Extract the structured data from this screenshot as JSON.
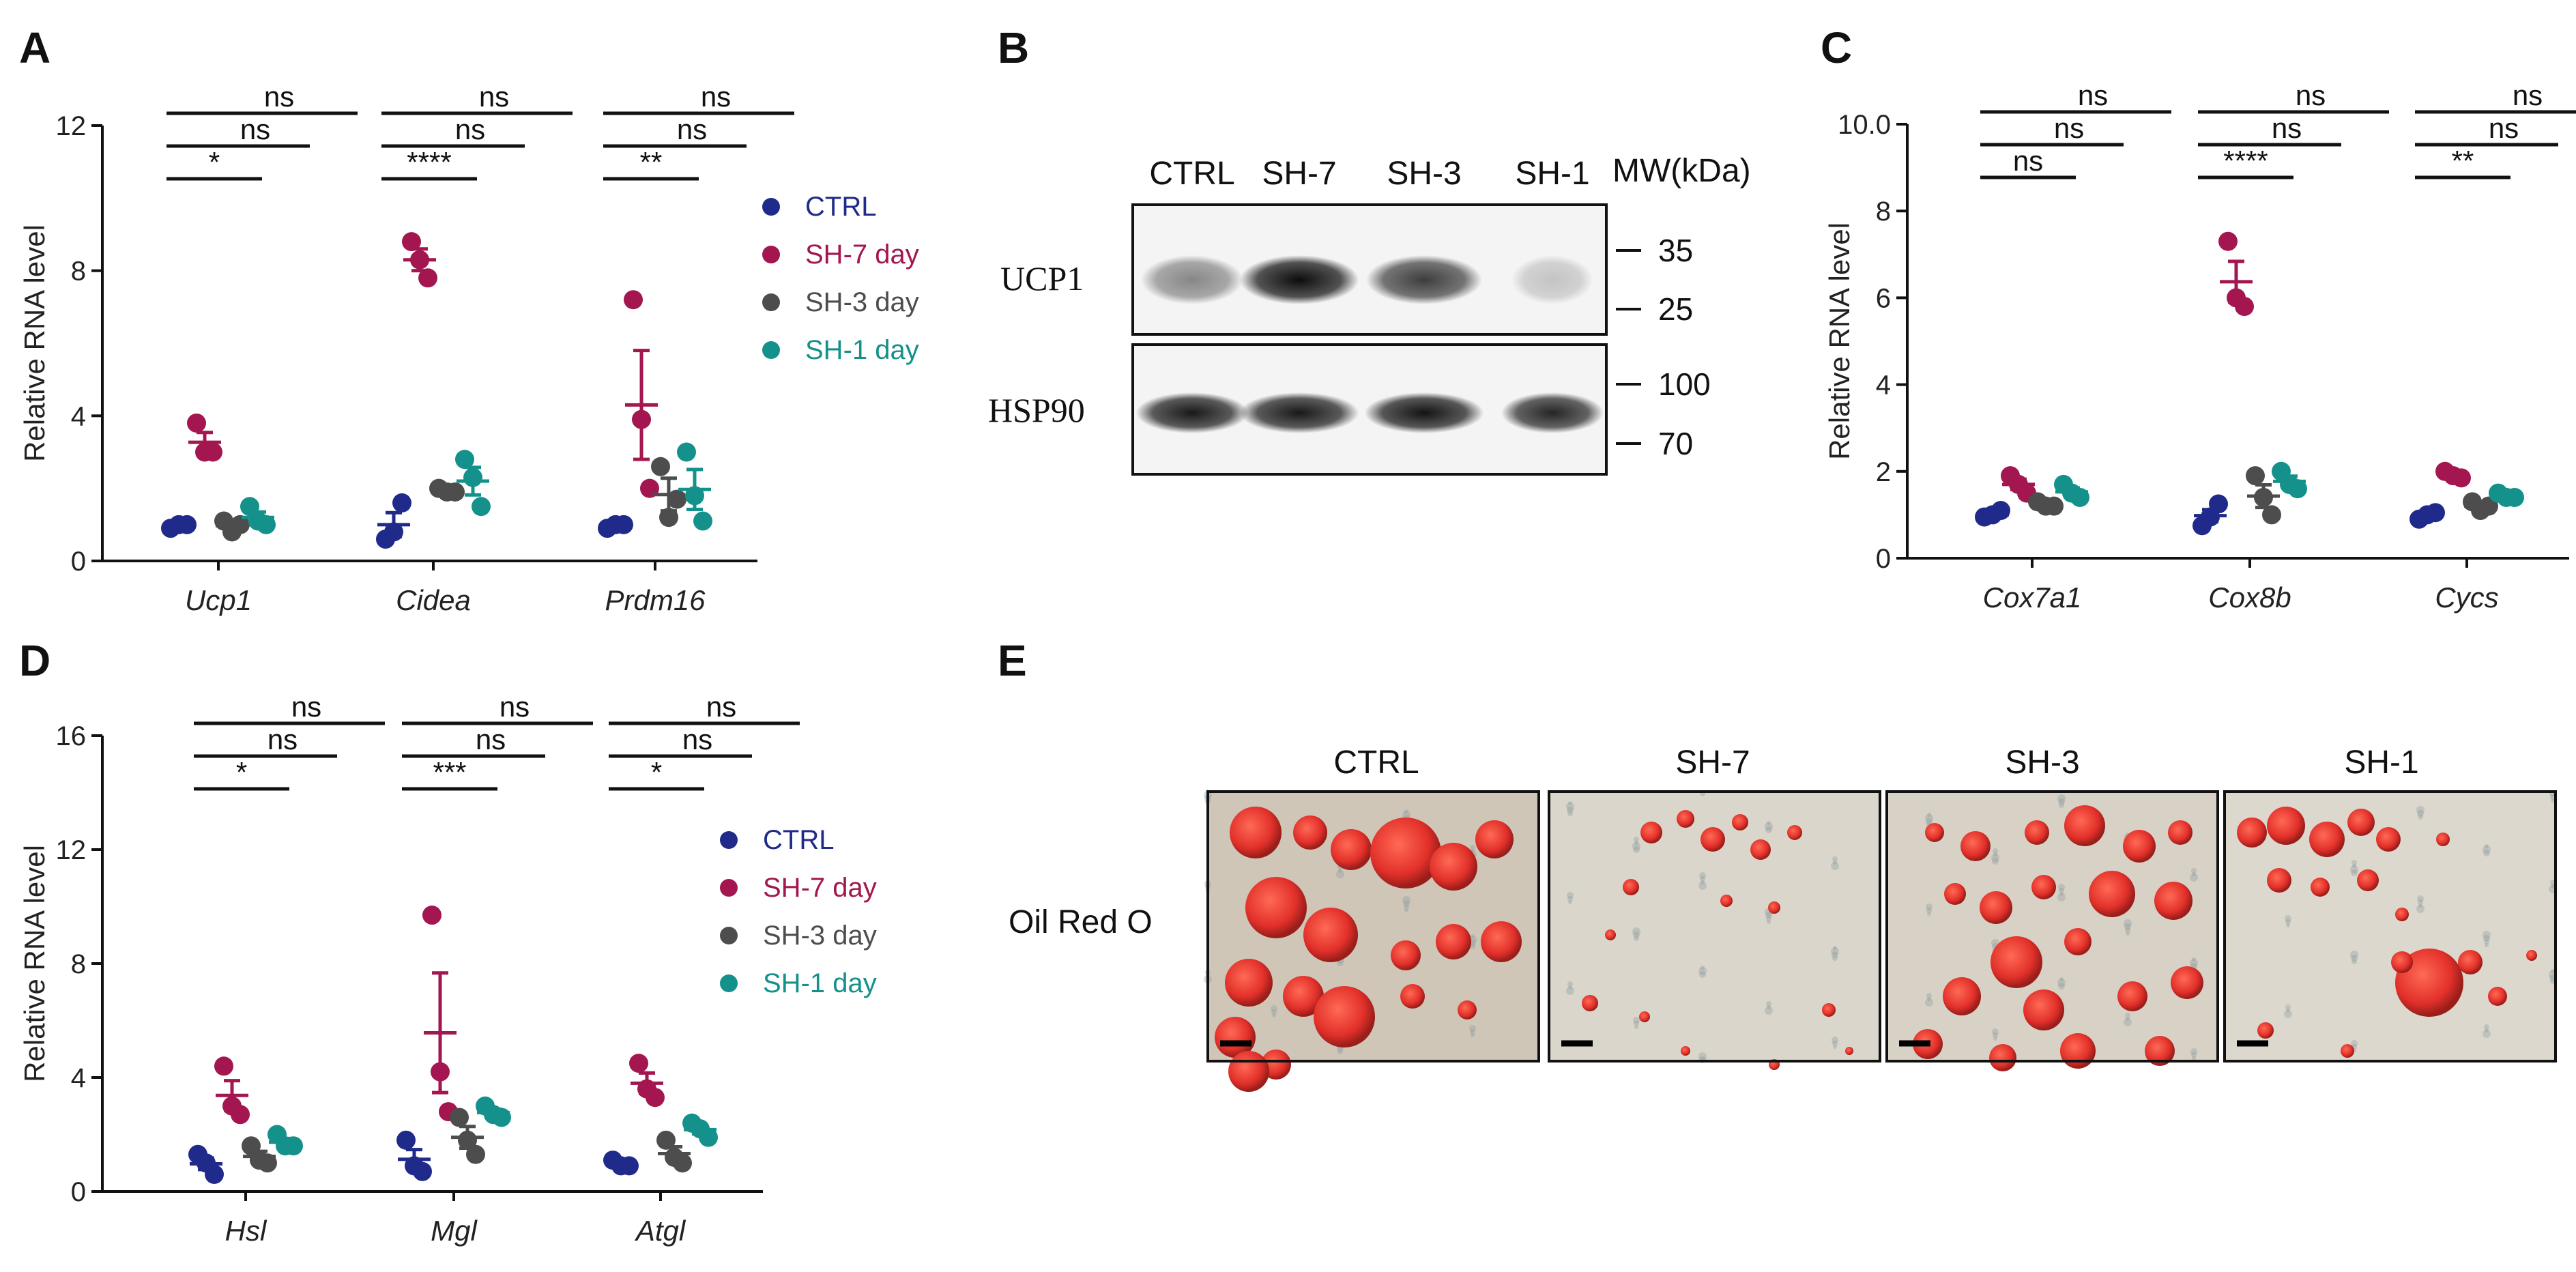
{
  "figure": {
    "panel_labels": [
      "A",
      "B",
      "C",
      "D",
      "E"
    ]
  },
  "colors": {
    "CTRL": "#1f2a8a",
    "SH-7 day": "#a31650",
    "SH-3 day": "#4d4d4d",
    "SH-1 day": "#14918a",
    "axis": "#111111"
  },
  "chart_data": [
    {
      "panel": "A",
      "type": "scatter",
      "ylabel": "Relative RNA level",
      "ylim": [
        0,
        12
      ],
      "yticks": [
        0,
        4,
        8,
        12
      ],
      "categories": [
        "Ucp1",
        "Cidea",
        "Prdm16"
      ],
      "legend": [
        "CTRL",
        "SH-7 day",
        "SH-3 day",
        "SH-1 day"
      ],
      "series": [
        {
          "name": "CTRL",
          "points": [
            [
              0.9,
              1.0,
              1.0
            ],
            [
              0.6,
              0.8,
              1.6
            ],
            [
              0.9,
              1.0,
              1.0
            ]
          ],
          "mean": [
            0.95,
            1.0,
            0.95
          ],
          "sem": [
            0.05,
            0.33,
            0.05
          ]
        },
        {
          "name": "SH-7 day",
          "points": [
            [
              3.8,
              3.0,
              3.0
            ],
            [
              8.8,
              8.3,
              7.8
            ],
            [
              7.2,
              3.9,
              2.0
            ]
          ],
          "mean": [
            3.27,
            8.3,
            4.3
          ],
          "sem": [
            0.27,
            0.3,
            1.5
          ]
        },
        {
          "name": "SH-3 day",
          "points": [
            [
              1.1,
              0.8,
              1.0
            ],
            [
              2.0,
              1.9,
              1.9
            ],
            [
              2.6,
              1.2,
              1.7
            ]
          ],
          "mean": [
            0.97,
            1.93,
            1.83
          ],
          "sem": [
            0.09,
            0.03,
            0.45
          ]
        },
        {
          "name": "SH-1 day",
          "points": [
            [
              1.5,
              1.1,
              1.0
            ],
            [
              2.8,
              2.3,
              1.5
            ],
            [
              3.0,
              1.8,
              1.1
            ]
          ],
          "mean": [
            1.2,
            2.2,
            1.97
          ],
          "sem": [
            0.15,
            0.38,
            0.55
          ]
        }
      ],
      "significance": [
        [
          {
            "label": "*",
            "level": 1
          },
          {
            "label": "ns",
            "level": 2
          },
          {
            "label": "ns",
            "level": 3
          }
        ],
        [
          {
            "label": "****",
            "level": 1
          },
          {
            "label": "ns",
            "level": 2
          },
          {
            "label": "ns",
            "level": 3
          }
        ],
        [
          {
            "label": "**",
            "level": 1
          },
          {
            "label": "ns",
            "level": 2
          },
          {
            "label": "ns",
            "level": 3
          }
        ]
      ]
    },
    {
      "panel": "C",
      "type": "scatter",
      "ylabel": "Relative RNA level",
      "ylim": [
        0,
        10
      ],
      "yticks": [
        0,
        2,
        4,
        6,
        8,
        10
      ],
      "yticklabels": [
        "0",
        "2",
        "4",
        "6",
        "8",
        "10.0"
      ],
      "categories": [
        "Cox7a1",
        "Cox8b",
        "Cycs"
      ],
      "series": [
        {
          "name": "CTRL",
          "points": [
            [
              0.95,
              1.0,
              1.1
            ],
            [
              0.75,
              0.95,
              1.25
            ],
            [
              0.9,
              1.0,
              1.05
            ]
          ],
          "mean": [
            1.0,
            0.98,
            0.98
          ],
          "sem": [
            0.04,
            0.14,
            0.04
          ]
        },
        {
          "name": "SH-7 day",
          "points": [
            [
              1.9,
              1.7,
              1.5
            ],
            [
              7.3,
              6.0,
              5.8
            ],
            [
              2.0,
              1.9,
              1.85
            ]
          ],
          "mean": [
            1.7,
            6.37,
            1.92
          ],
          "sem": [
            0.12,
            0.47,
            0.04
          ]
        },
        {
          "name": "SH-3 day",
          "points": [
            [
              1.3,
              1.2,
              1.2
            ],
            [
              1.9,
              1.4,
              1.0
            ],
            [
              1.3,
              1.1,
              1.2
            ]
          ],
          "mean": [
            1.23,
            1.43,
            1.2
          ],
          "sem": [
            0.03,
            0.26,
            0.06
          ]
        },
        {
          "name": "SH-1 day",
          "points": [
            [
              1.7,
              1.5,
              1.4
            ],
            [
              2.0,
              1.7,
              1.6
            ],
            [
              1.5,
              1.4,
              1.4
            ]
          ],
          "mean": [
            1.53,
            1.77,
            1.43
          ],
          "sem": [
            0.09,
            0.12,
            0.03
          ]
        }
      ],
      "significance": [
        [
          {
            "label": "ns",
            "level": 1
          },
          {
            "label": "ns",
            "level": 2
          },
          {
            "label": "ns",
            "level": 3
          }
        ],
        [
          {
            "label": "****",
            "level": 1
          },
          {
            "label": "ns",
            "level": 2
          },
          {
            "label": "ns",
            "level": 3
          }
        ],
        [
          {
            "label": "**",
            "level": 1
          },
          {
            "label": "ns",
            "level": 2
          },
          {
            "label": "ns",
            "level": 3
          }
        ]
      ]
    },
    {
      "panel": "D",
      "type": "scatter",
      "ylabel": "Relative RNA level",
      "ylim": [
        0,
        16
      ],
      "yticks": [
        0,
        4,
        8,
        12,
        16
      ],
      "categories": [
        "Hsl",
        "Mgl",
        "Atgl"
      ],
      "legend": [
        "CTRL",
        "SH-7 day",
        "SH-3 day",
        "SH-1 day"
      ],
      "series": [
        {
          "name": "CTRL",
          "points": [
            [
              1.3,
              1.0,
              0.6
            ],
            [
              1.8,
              0.9,
              0.7
            ],
            [
              1.1,
              0.9,
              0.9
            ]
          ],
          "mean": [
            0.97,
            1.13,
            0.97
          ],
          "sem": [
            0.2,
            0.34,
            0.07
          ]
        },
        {
          "name": "SH-7 day",
          "points": [
            [
              4.4,
              3.0,
              2.7
            ],
            [
              9.7,
              4.2,
              2.8
            ],
            [
              4.5,
              3.6,
              3.3
            ]
          ],
          "mean": [
            3.37,
            5.57,
            3.8
          ],
          "sem": [
            0.52,
            2.1,
            0.36
          ]
        },
        {
          "name": "SH-3 day",
          "points": [
            [
              1.6,
              1.1,
              1.0
            ],
            [
              2.6,
              1.8,
              1.3
            ],
            [
              1.8,
              1.2,
              1.0
            ]
          ],
          "mean": [
            1.23,
            1.9,
            1.33
          ],
          "sem": [
            0.18,
            0.38,
            0.24
          ]
        },
        {
          "name": "SH-1 day",
          "points": [
            [
              2.0,
              1.6,
              1.6
            ],
            [
              3.0,
              2.7,
              2.6
            ],
            [
              2.4,
              2.2,
              1.9
            ]
          ],
          "mean": [
            1.73,
            2.77,
            2.17
          ],
          "sem": [
            0.13,
            0.12,
            0.15
          ]
        }
      ],
      "significance": [
        [
          {
            "label": "*",
            "level": 1
          },
          {
            "label": "ns",
            "level": 2
          },
          {
            "label": "ns",
            "level": 3
          }
        ],
        [
          {
            "label": "***",
            "level": 1
          },
          {
            "label": "ns",
            "level": 2
          },
          {
            "label": "ns",
            "level": 3
          }
        ],
        [
          {
            "label": "*",
            "level": 1
          },
          {
            "label": "ns",
            "level": 2
          },
          {
            "label": "ns",
            "level": 3
          }
        ]
      ]
    }
  ],
  "western_blot": {
    "lanes": [
      "CTRL",
      "SH-7",
      "SH-3",
      "SH-1"
    ],
    "mw_header": "MW(kDa)",
    "rows": [
      {
        "label": "UCP1",
        "markers": [
          "35",
          "25"
        ],
        "band_intensity": [
          0.45,
          0.95,
          0.75,
          0.2
        ]
      },
      {
        "label": "HSP90",
        "markers": [
          "100",
          "70"
        ],
        "band_intensity": [
          0.9,
          0.9,
          0.92,
          0.85
        ]
      }
    ]
  },
  "micrographs": {
    "row_label": "Oil Red O",
    "columns": [
      "CTRL",
      "SH-7",
      "SH-3",
      "SH-1"
    ]
  }
}
